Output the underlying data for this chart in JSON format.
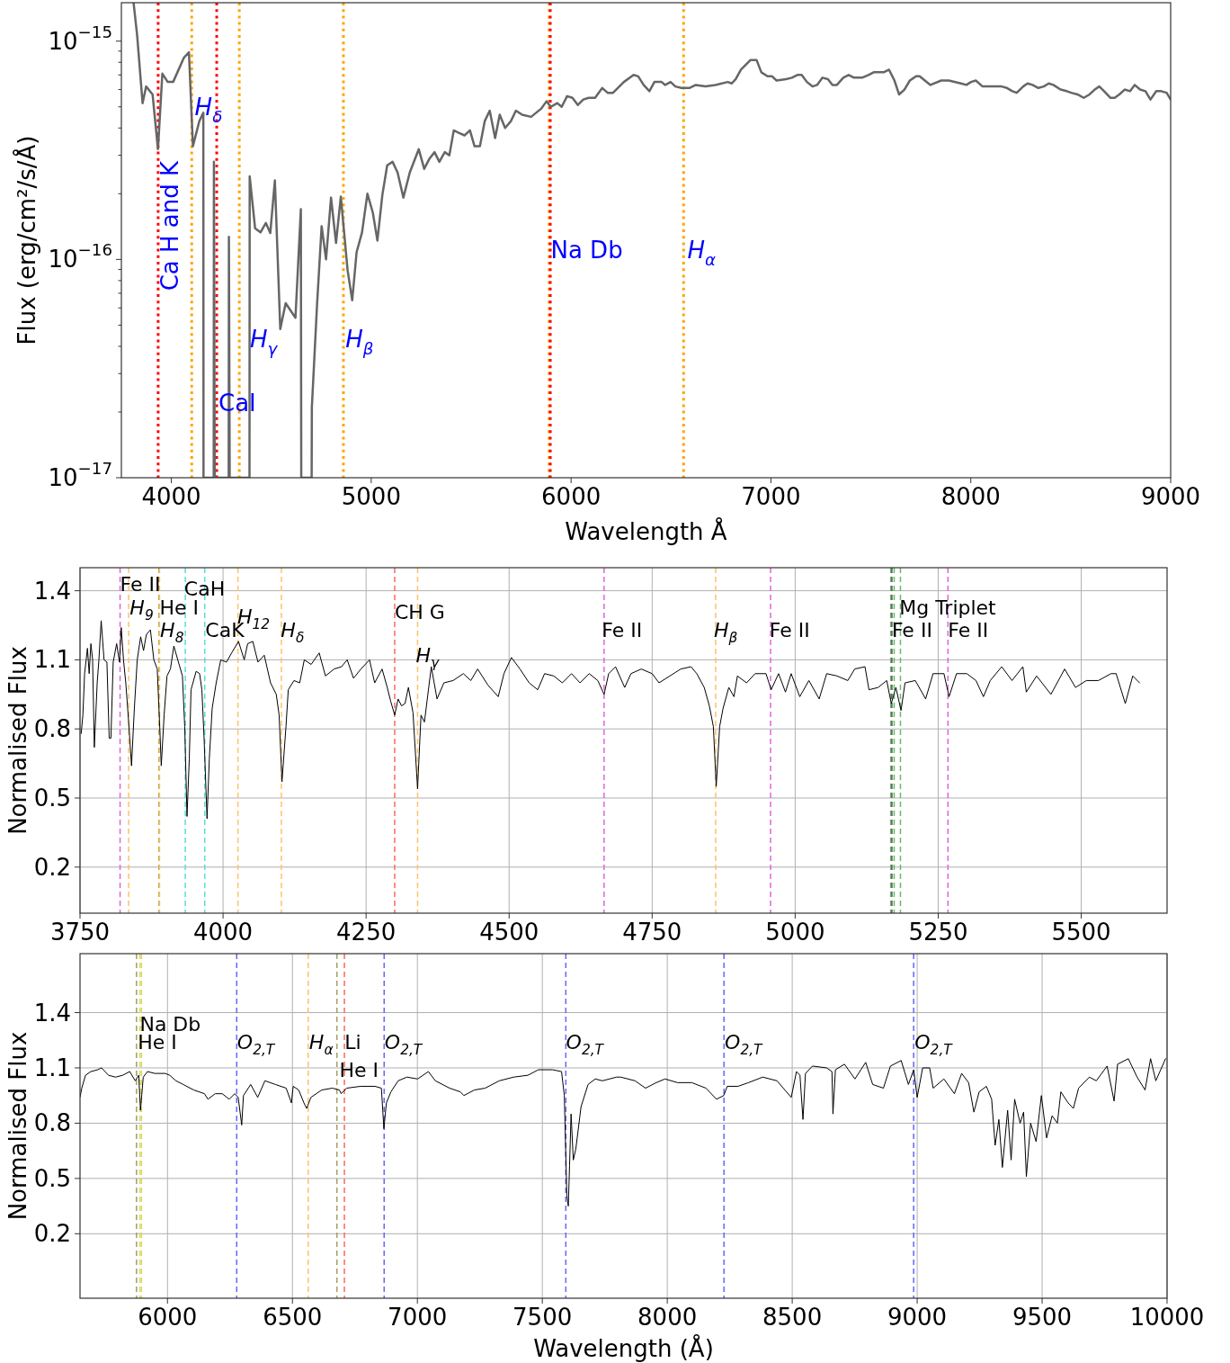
{
  "chart_data": [
    {
      "type": "line",
      "xlabel": "Wavelength Å",
      "ylabel": "Flux (erg/cm²/s/Å)",
      "log": true,
      "xlim": [
        3750,
        9000
      ],
      "ylim": [
        1e-17,
        1.5e-15
      ],
      "xticks": [
        4000,
        5000,
        6000,
        7000,
        8000,
        9000
      ],
      "yticks": [
        {
          "value": 1e-17,
          "label": "10$^{−17}$"
        },
        {
          "value": 2e-17,
          "label": null
        },
        {
          "value": 3e-17,
          "label": null
        },
        {
          "value": 4e-17,
          "label": null
        },
        {
          "value": 5e-17,
          "label": null
        },
        {
          "value": 6e-17,
          "label": null
        },
        {
          "value": 7e-17,
          "label": null
        },
        {
          "value": 8e-17,
          "label": null
        },
        {
          "value": 9e-17,
          "label": null
        },
        {
          "value": 1e-16,
          "label": "10$^{−16}$"
        },
        {
          "value": 2e-16,
          "label": null
        },
        {
          "value": 3e-16,
          "label": null
        },
        {
          "value": 4e-16,
          "label": null
        },
        {
          "value": 5e-16,
          "label": null
        },
        {
          "value": 6e-16,
          "label": null
        },
        {
          "value": 7e-16,
          "label": null
        },
        {
          "value": 8e-16,
          "label": null
        },
        {
          "value": 9e-16,
          "label": null
        },
        {
          "value": 1e-15,
          "label": "10$^{−15}$"
        }
      ],
      "x": [
        3811,
        3829,
        3856,
        3874,
        3906,
        3933,
        3955,
        3982,
        4009,
        4063,
        4088,
        4108,
        4140,
        4160,
        4161,
        4212,
        4213,
        4217,
        4287,
        4288,
        4292,
        4391,
        4392,
        4419,
        4446,
        4473,
        4495,
        4518,
        4545,
        4572,
        4621,
        4648,
        4650,
        4702,
        4703,
        4729,
        4752,
        4774,
        4799,
        4824,
        4848,
        4882,
        4905,
        4927,
        4954,
        4981,
        5008,
        5031,
        5056,
        5080,
        5107,
        5132,
        5161,
        5193,
        5238,
        5265,
        5292,
        5317,
        5341,
        5368,
        5391,
        5413,
        5438,
        5467,
        5494,
        5517,
        5544,
        5568,
        5593,
        5620,
        5643,
        5670,
        5699,
        5724,
        5755,
        5800,
        5850,
        5877,
        5899,
        5931,
        5953,
        5980,
        6007,
        6034,
        6061,
        6088,
        6120,
        6156,
        6183,
        6210,
        6264,
        6313,
        6336,
        6363,
        6392,
        6417,
        6453,
        6471,
        6498,
        6522,
        6552,
        6592,
        6624,
        6673,
        6722,
        6784,
        6804,
        6824,
        6850,
        6898,
        6928,
        6952,
        6983,
        7006,
        7028,
        7075,
        7105,
        7132,
        7154,
        7180,
        7208,
        7231,
        7258,
        7285,
        7308,
        7330,
        7362,
        7389,
        7416,
        7456,
        7488,
        7514,
        7564,
        7591,
        7618,
        7641,
        7668,
        7695,
        7726,
        7744,
        7798,
        7852,
        7890,
        7951,
        7978,
        8001,
        8025,
        8059,
        8089,
        8154,
        8181,
        8208,
        8230,
        8262,
        8284,
        8309,
        8338,
        8365,
        8390,
        8413,
        8449,
        8480,
        8503,
        8534,
        8565,
        8594,
        8620,
        8643,
        8667,
        8698,
        8720,
        8743,
        8770,
        8797,
        8820,
        8847,
        8874,
        8899,
        8928,
        8953,
        8980,
        9000
      ],
      "series": [
        {
          "color": "#666666",
          "values": [
            1.5e-15,
            1.06e-15,
            5.2e-16,
            6.2e-16,
            5.7e-16,
            3.2e-16,
            7.1e-16,
            6.5e-16,
            6.5e-16,
            8.4e-16,
            8.9e-16,
            3.3e-16,
            4.3e-16,
            4.7e-16,
            1e-17,
            1e-17,
            2.8e-16,
            1e-17,
            1e-17,
            1.27e-16,
            1e-17,
            1e-17,
            2.4e-16,
            1.39e-16,
            1.33e-16,
            1.47e-16,
            1.32e-16,
            2.3e-16,
            4.8e-17,
            6.3e-17,
            5.4e-17,
            1.7e-16,
            1e-17,
            1e-17,
            2.1e-17,
            6.2e-17,
            1.42e-16,
            1e-16,
            1.92e-16,
            1.19e-16,
            1.94e-16,
            8.9e-17,
            6.5e-17,
            1.08e-16,
            1.33e-16,
            2e-16,
            1.64e-16,
            1.22e-16,
            1.98e-16,
            2.7e-16,
            2.8e-16,
            2.5e-16,
            1.92e-16,
            2.5e-16,
            3.2e-16,
            2.6e-16,
            2.9e-16,
            3.1e-16,
            2.8e-16,
            3.1e-16,
            3e-16,
            3.9e-16,
            3.8e-16,
            3.7e-16,
            3.9e-16,
            3.3e-16,
            3.3e-16,
            4.3e-16,
            4.8e-16,
            3.6e-16,
            4.6e-16,
            4e-16,
            4.3e-16,
            4.8e-16,
            4.6e-16,
            4.5e-16,
            4.9e-16,
            5.3e-16,
            5e-16,
            5.2e-16,
            5e-16,
            5.6e-16,
            5.5e-16,
            5.1e-16,
            5.4e-16,
            5.5e-16,
            5.5e-16,
            6.1e-16,
            5.8e-16,
            5.8e-16,
            6.5e-16,
            7e-16,
            6.9e-16,
            6.3e-16,
            5.9e-16,
            6.5e-16,
            6.5e-16,
            6.3e-16,
            6.5e-16,
            6.2e-16,
            6.1e-16,
            6.1e-16,
            6.3e-16,
            6.2e-16,
            6.3e-16,
            6.5e-16,
            6.4e-16,
            6.7e-16,
            7.4e-16,
            8.2e-16,
            8.2e-16,
            7.2e-16,
            6.9e-16,
            6.9e-16,
            6.6e-16,
            6.7e-16,
            6.8e-16,
            7e-16,
            7e-16,
            6.5e-16,
            6.2e-16,
            6.3e-16,
            6.8e-16,
            6.7e-16,
            6.3e-16,
            6.3e-16,
            6.8e-16,
            7e-16,
            6.8e-16,
            6.8e-16,
            7e-16,
            7.2e-16,
            7.2e-16,
            7.4e-16,
            6.6e-16,
            5.7e-16,
            6e-16,
            6.6e-16,
            6.9e-16,
            6.9e-16,
            6.3e-16,
            6.6e-16,
            6.6e-16,
            6.4e-16,
            6.3e-16,
            6.5e-16,
            6.6e-16,
            6.2e-16,
            6.2e-16,
            6.2e-16,
            6.1e-16,
            5.9e-16,
            5.8e-16,
            6.2e-16,
            6.4e-16,
            6.3e-16,
            6.1e-16,
            6.2e-16,
            6.4e-16,
            6.3e-16,
            6e-16,
            5.9e-16,
            5.8e-16,
            5.7e-16,
            5.5e-16,
            5.7e-16,
            6e-16,
            6.2e-16,
            5.9e-16,
            5.5e-16,
            5.5e-16,
            5.7e-16,
            6e-16,
            5.9e-16,
            6.3e-16,
            6e-16,
            5.9e-16,
            5.4e-16,
            5.9e-16,
            5.9e-16,
            5.8e-16,
            5.4e-16
          ]
        }
      ],
      "ref_lines": [
        {
          "axis": "x",
          "value": 3934,
          "label": "Ca H and K",
          "color": "#ff0000",
          "line_style": "dotted"
        },
        {
          "axis": "x",
          "value": 4102,
          "color": "#ffa500",
          "line_style": "dotted"
        },
        {
          "axis": "x",
          "value": 4227,
          "color": "#ff0000",
          "line_style": "dotted"
        },
        {
          "axis": "x",
          "value": 4340,
          "color": "#ffa500",
          "line_style": "dotted"
        },
        {
          "axis": "x",
          "value": 4861,
          "color": "#ffa500",
          "line_style": "dotted"
        },
        {
          "axis": "x",
          "value": 5890,
          "color": "#ffa500",
          "line_style": "dotted"
        },
        {
          "axis": "x",
          "value": 5896,
          "color": "#ff0000",
          "line_style": "dotted"
        },
        {
          "axis": "x",
          "value": 6563,
          "color": "#ffa500",
          "line_style": "dotted"
        }
      ],
      "annotations": [
        {
          "text": "H$_{δ}$",
          "x": 4117,
          "y": 5e-16
        },
        {
          "text": "CaI",
          "x": 4236,
          "y": 2.2e-17
        },
        {
          "text": "H$_{γ}$",
          "x": 4393,
          "y": 4.3e-17
        },
        {
          "text": "H$_{β}$",
          "x": 4871,
          "y": 4.3e-17
        },
        {
          "text": "Na Db",
          "x": 5898,
          "y": 1.1e-16
        },
        {
          "text": "H$_{α}$",
          "x": 6582,
          "y": 1.1e-16
        }
      ]
    },
    {
      "type": "line",
      "ylabel": "Normalised Flux",
      "grid": true,
      "xlim": [
        3750,
        5650
      ],
      "ylim": [
        0,
        1.5
      ],
      "xticks": [
        3750,
        4000,
        4250,
        4500,
        4750,
        5000,
        5250,
        5500
      ],
      "yticks": [
        0.2,
        0.5,
        0.8,
        1.1,
        1.4
      ],
      "x": [
        3752,
        3755,
        3758,
        3763,
        3766,
        3769,
        3772,
        3775,
        3780,
        3783,
        3787,
        3792,
        3797,
        3801,
        3804,
        3808,
        3814,
        3819,
        3822,
        3826,
        3830,
        3835,
        3840,
        3845,
        3850,
        3856,
        3861,
        3866,
        3873,
        3879,
        3885,
        3889,
        3892,
        3897,
        3902,
        3908,
        3914,
        3922,
        3929,
        3933,
        3937,
        3941,
        3944,
        3953,
        3959,
        3963,
        3967,
        3972,
        3976,
        3981,
        3988,
        3996,
        4006,
        4015,
        4027,
        4037,
        4043,
        4052,
        4061,
        4072,
        4083,
        4093,
        4098,
        4103,
        4110,
        4114,
        4124,
        4134,
        4142,
        4154,
        4168,
        4179,
        4194,
        4207,
        4217,
        4228,
        4241,
        4256,
        4265,
        4278,
        4287,
        4293,
        4300,
        4306,
        4312,
        4318,
        4324,
        4332,
        4340,
        4346,
        4352,
        4364,
        4374,
        4386,
        4402,
        4420,
        4433,
        4445,
        4463,
        4481,
        4491,
        4504,
        4519,
        4535,
        4550,
        4562,
        4578,
        4593,
        4609,
        4624,
        4640,
        4655,
        4666,
        4674,
        4686,
        4702,
        4713,
        4731,
        4750,
        4762,
        4781,
        4800,
        4818,
        4828,
        4841,
        4850,
        4857,
        4862,
        4868,
        4874,
        4884,
        4893,
        4899,
        4915,
        4930,
        4949,
        4958,
        4971,
        4983,
        4993,
        5008,
        5024,
        5042,
        5055,
        5073,
        5092,
        5104,
        5122,
        5129,
        5145,
        5160,
        5168,
        5176,
        5185,
        5192,
        5210,
        5228,
        5241,
        5260,
        5269,
        5282,
        5300,
        5316,
        5329,
        5341,
        5361,
        5379,
        5398,
        5404,
        5422,
        5447,
        5471,
        5490,
        5509,
        5530,
        5552,
        5561,
        5577,
        5590,
        5602
      ],
      "series": [
        {
          "color": "#000000",
          "values": [
            0.78,
            0.86,
            1.04,
            1.15,
            1.04,
            1.17,
            1.1,
            0.72,
            1.0,
            1.1,
            1.27,
            1.1,
            1.09,
            0.76,
            0.76,
            1.09,
            1.17,
            1.09,
            1.24,
            1.1,
            1.0,
            0.83,
            0.64,
            0.89,
            1.1,
            1.2,
            1.14,
            1.21,
            1.23,
            1.1,
            1.06,
            0.83,
            0.64,
            0.86,
            1.03,
            1.06,
            1.16,
            1.09,
            1.03,
            0.81,
            0.42,
            0.67,
            0.97,
            1.05,
            1.04,
            0.97,
            0.75,
            0.41,
            0.67,
            0.89,
            1.0,
            1.1,
            1.09,
            1.13,
            1.18,
            1.1,
            1.17,
            1.18,
            1.09,
            1.12,
            1.0,
            0.95,
            0.86,
            0.57,
            0.81,
            0.97,
            1.01,
            1.0,
            1.1,
            1.08,
            1.13,
            1.03,
            1.06,
            1.07,
            1.1,
            1.02,
            1.06,
            1.1,
            1.0,
            1.06,
            0.98,
            0.92,
            0.86,
            0.93,
            0.9,
            0.91,
            0.98,
            0.87,
            0.54,
            0.86,
            0.83,
            1.07,
            0.93,
            1.0,
            1.01,
            1.04,
            1.01,
            1.06,
            0.99,
            0.94,
            1.04,
            1.11,
            1.06,
            1.0,
            0.97,
            1.04,
            1.03,
            1.0,
            1.04,
            1.0,
            1.04,
            1.01,
            0.95,
            1.04,
            1.07,
            0.98,
            1.04,
            1.06,
            1.04,
            1.0,
            1.03,
            1.06,
            1.07,
            1.04,
            0.98,
            0.9,
            0.81,
            0.55,
            0.81,
            0.89,
            0.98,
            0.94,
            1.03,
            1.0,
            1.04,
            1.04,
            0.97,
            1.04,
            0.96,
            1.04,
            0.94,
            1.01,
            0.93,
            1.04,
            1.03,
            1.01,
            1.06,
            1.07,
            0.97,
            0.98,
            1.01,
            0.91,
            0.98,
            0.88,
            1.0,
            1.01,
            0.93,
            1.04,
            1.04,
            0.94,
            1.04,
            1.04,
            1.01,
            0.94,
            1.01,
            1.07,
            1.01,
            1.07,
            0.96,
            1.03,
            0.95,
            1.06,
            0.98,
            1.01,
            1.01,
            1.04,
            1.04,
            0.91,
            1.03,
            1.0
          ]
        }
      ],
      "ref_lines": [
        {
          "axis": "x",
          "value": 3820,
          "color": "#dd66dd",
          "line_style": "dashed"
        },
        {
          "axis": "x",
          "value": 3835,
          "color": "#ffc266",
          "line_style": "dashed"
        },
        {
          "axis": "x",
          "value": 3888,
          "color": "#a0a050",
          "line_style": "dashed"
        },
        {
          "axis": "x",
          "value": 3889,
          "color": "#ffc266",
          "line_style": "dashed"
        },
        {
          "axis": "x",
          "value": 3934,
          "color": "#55dddd",
          "line_style": "dashed"
        },
        {
          "axis": "x",
          "value": 3968,
          "color": "#55dddd",
          "line_style": "dashed"
        },
        {
          "axis": "x",
          "value": 4026,
          "color": "#ffc266",
          "line_style": "dashed"
        },
        {
          "axis": "x",
          "value": 4102,
          "color": "#ffc266",
          "line_style": "dashed"
        },
        {
          "axis": "x",
          "value": 4300,
          "color": "#ff6666",
          "line_style": "dashed"
        },
        {
          "axis": "x",
          "value": 4340,
          "color": "#ffc266",
          "line_style": "dashed"
        },
        {
          "axis": "x",
          "value": 4666,
          "color": "#dd66dd",
          "line_style": "dashed"
        },
        {
          "axis": "x",
          "value": 4861,
          "color": "#ffc266",
          "line_style": "dashed"
        },
        {
          "axis": "x",
          "value": 4957,
          "color": "#dd66dd",
          "line_style": "dashed"
        },
        {
          "axis": "x",
          "value": 5167,
          "color": "#66bb66",
          "line_style": "dashed"
        },
        {
          "axis": "x",
          "value": 5173,
          "color": "#66bb66",
          "line_style": "dashed"
        },
        {
          "axis": "x",
          "value": 5184,
          "color": "#66bb66",
          "line_style": "dashed"
        },
        {
          "axis": "x",
          "value": 5169,
          "color": "#555555",
          "line_style": "dashed"
        },
        {
          "axis": "x",
          "value": 5267,
          "color": "#dd66dd",
          "line_style": "dashed"
        }
      ],
      "annotations": [
        {
          "text": "Fe II",
          "x": 3820,
          "y": 1.43
        },
        {
          "text": "H$_{9}$",
          "x": 3837,
          "y": 1.33
        },
        {
          "text": "He I",
          "x": 3889,
          "y": 1.33
        },
        {
          "text": "H$_{8}$",
          "x": 3890,
          "y": 1.23
        },
        {
          "text": "CaH",
          "x": 3932,
          "y": 1.41
        },
        {
          "text": "CaK",
          "x": 3969,
          "y": 1.23
        },
        {
          "text": "H$_{12}$",
          "x": 4025,
          "y": 1.29
        },
        {
          "text": "H$_{δ}$",
          "x": 4101,
          "y": 1.23
        },
        {
          "text": "CH G",
          "x": 4300,
          "y": 1.31
        },
        {
          "text": "H$_{γ}$",
          "x": 4337,
          "y": 1.12
        },
        {
          "text": "Fe II",
          "x": 4662,
          "y": 1.23
        },
        {
          "text": "H$_{β}$",
          "x": 4858,
          "y": 1.23
        },
        {
          "text": "Fe II",
          "x": 4955,
          "y": 1.23
        },
        {
          "text": "Fe II",
          "x": 5169,
          "y": 1.23
        },
        {
          "text": "Mg Triplet",
          "x": 5182,
          "y": 1.33
        },
        {
          "text": "Fe II",
          "x": 5267,
          "y": 1.23
        }
      ]
    },
    {
      "type": "line",
      "xlabel": "Wavelength (Å)",
      "ylabel": "Normalised Flux",
      "grid": true,
      "xlim": [
        5650,
        10000
      ],
      "ylim": [
        -0.15,
        1.72
      ],
      "xticks": [
        6000,
        6500,
        7000,
        7500,
        8000,
        8500,
        9000,
        9500,
        10000
      ],
      "yticks": [
        0.2,
        0.5,
        0.8,
        1.1,
        1.4
      ],
      "x": [
        5650,
        5657,
        5672,
        5693,
        5721,
        5736,
        5764,
        5792,
        5821,
        5849,
        5871,
        5885,
        5892,
        5903,
        5920,
        5949,
        5991,
        6009,
        6034,
        6063,
        6105,
        6148,
        6162,
        6191,
        6219,
        6247,
        6269,
        6283,
        6297,
        6304,
        6333,
        6361,
        6390,
        6432,
        6475,
        6496,
        6503,
        6525,
        6546,
        6557,
        6574,
        6617,
        6660,
        6688,
        6695,
        6717,
        6773,
        6830,
        6856,
        6866,
        6876,
        6894,
        6923,
        6958,
        7001,
        7044,
        7072,
        7129,
        7172,
        7186,
        7228,
        7271,
        7328,
        7385,
        7442,
        7484,
        7541,
        7577,
        7588,
        7598,
        7604,
        7609,
        7615,
        7624,
        7634,
        7655,
        7683,
        7712,
        7740,
        7769,
        7797,
        7814,
        7871,
        7913,
        7956,
        7991,
        8041,
        8098,
        8155,
        8197,
        8226,
        8240,
        8283,
        8325,
        8382,
        8439,
        8496,
        8517,
        8531,
        8543,
        8553,
        8581,
        8638,
        8659,
        8663,
        8673,
        8709,
        8751,
        8794,
        8822,
        8865,
        8893,
        8936,
        8965,
        8986,
        9000,
        9022,
        9050,
        9064,
        9107,
        9149,
        9178,
        9206,
        9227,
        9248,
        9277,
        9298,
        9312,
        9327,
        9341,
        9362,
        9376,
        9390,
        9412,
        9426,
        9437,
        9454,
        9476,
        9497,
        9518,
        9540,
        9561,
        9575,
        9604,
        9625,
        9646,
        9689,
        9717,
        9760,
        9788,
        9802,
        9845,
        9880,
        9912,
        9934,
        9955,
        9994
      ],
      "series": [
        {
          "color": "#000000",
          "values": [
            0.94,
            0.99,
            1.06,
            1.08,
            1.09,
            1.1,
            1.06,
            1.05,
            1.06,
            1.08,
            1.03,
            1.06,
            0.87,
            1.05,
            1.08,
            1.07,
            1.07,
            1.06,
            1.03,
            1.01,
            0.98,
            0.96,
            0.93,
            0.96,
            0.96,
            0.93,
            0.96,
            0.94,
            0.79,
            0.95,
            1.01,
            0.94,
            1.03,
            1.01,
            0.99,
            0.91,
            1.0,
            0.98,
            0.91,
            0.88,
            0.94,
            0.98,
            0.99,
            0.98,
            0.96,
            0.99,
            1.0,
            1.0,
            0.99,
            0.77,
            0.91,
            0.97,
            1.03,
            1.05,
            1.04,
            1.08,
            1.03,
            0.99,
            0.97,
            0.95,
            0.98,
            0.99,
            1.03,
            1.05,
            1.06,
            1.09,
            1.09,
            1.08,
            0.95,
            0.41,
            0.35,
            0.57,
            0.85,
            0.6,
            0.66,
            0.89,
            1.01,
            1.04,
            1.03,
            1.04,
            1.05,
            1.05,
            1.03,
            0.99,
            1.02,
            1.04,
            1.02,
            1.02,
            0.99,
            0.93,
            0.95,
            1.0,
            1.0,
            1.02,
            1.05,
            1.03,
            0.94,
            1.08,
            1.06,
            0.82,
            1.07,
            1.11,
            1.1,
            1.08,
            0.85,
            1.09,
            1.12,
            1.04,
            1.13,
            1.01,
            0.99,
            1.11,
            1.14,
            1.01,
            1.09,
            0.94,
            1.1,
            1.1,
            0.99,
            1.04,
            0.96,
            1.07,
            1.02,
            0.86,
            0.97,
            1.0,
            0.93,
            0.68,
            0.82,
            0.56,
            0.87,
            0.6,
            0.93,
            0.8,
            0.86,
            0.51,
            0.8,
            0.7,
            0.95,
            0.72,
            0.84,
            0.8,
            0.97,
            0.91,
            0.88,
            0.99,
            1.05,
            1.03,
            1.11,
            0.92,
            1.12,
            1.15,
            1.05,
            0.98,
            1.15,
            1.03,
            1.15
          ]
        }
      ],
      "ref_lines": [
        {
          "axis": "x",
          "value": 5876,
          "color": "#a0a060",
          "line_style": "dashed"
        },
        {
          "axis": "x",
          "value": 5890,
          "color": "#d8d860",
          "line_style": "dashed"
        },
        {
          "axis": "x",
          "value": 5896,
          "color": "#d8d860",
          "line_style": "dashed"
        },
        {
          "axis": "x",
          "value": 6277,
          "color": "#6666ff",
          "line_style": "dashed"
        },
        {
          "axis": "x",
          "value": 6563,
          "color": "#ffc266",
          "line_style": "dashed"
        },
        {
          "axis": "x",
          "value": 6678,
          "color": "#a0a060",
          "line_style": "dashed"
        },
        {
          "axis": "x",
          "value": 6708,
          "color": "#ff6666",
          "line_style": "dashed"
        },
        {
          "axis": "x",
          "value": 6867,
          "color": "#6666ff",
          "line_style": "dashed"
        },
        {
          "axis": "x",
          "value": 7594,
          "color": "#6666ff",
          "line_style": "dashed"
        },
        {
          "axis": "x",
          "value": 8227,
          "color": "#6666ff",
          "line_style": "dashed"
        },
        {
          "axis": "x",
          "value": 8986,
          "color": "#6666ff",
          "line_style": "dashed"
        }
      ],
      "annotations": [
        {
          "text": "Na Db",
          "x": 5889,
          "y": 1.34
        },
        {
          "text": "He I",
          "x": 5881,
          "y": 1.24
        },
        {
          "text": "O$_{2,T}$",
          "x": 6279,
          "y": 1.24
        },
        {
          "text": "H$_{α}$",
          "x": 6567,
          "y": 1.24
        },
        {
          "text": "Li",
          "x": 6709,
          "y": 1.24
        },
        {
          "text": "He I",
          "x": 6688,
          "y": 1.09
        },
        {
          "text": "O$_{2,T}$",
          "x": 6869,
          "y": 1.24
        },
        {
          "text": "O$_{2,T}$",
          "x": 7595,
          "y": 1.24
        },
        {
          "text": "O$_{2,T}$",
          "x": 8230,
          "y": 1.24
        },
        {
          "text": "O$_{2,T}$",
          "x": 8990,
          "y": 1.24
        }
      ]
    }
  ]
}
